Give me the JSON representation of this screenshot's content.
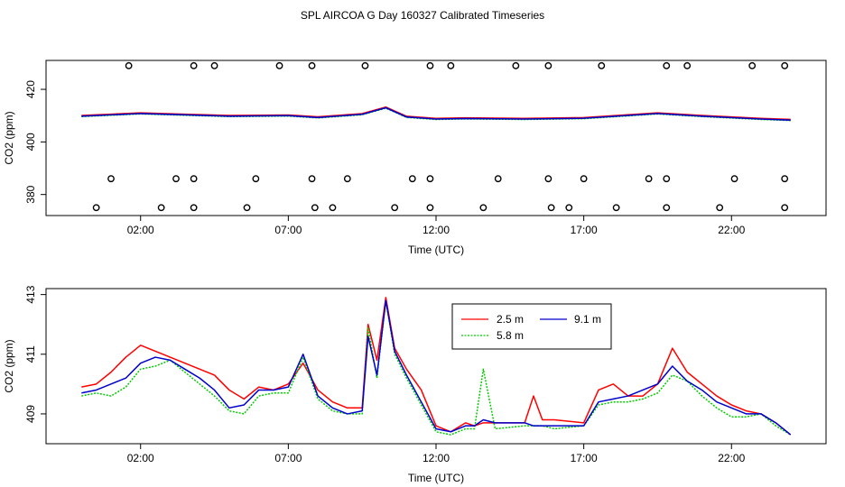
{
  "title": "SPL AIRCOA G  Day 160327  Calibrated Timeseries",
  "chart_data": [
    {
      "type": "line",
      "xlabel": "Time (UTC)",
      "ylabel": "CO2 (ppm)",
      "xlim": [
        -1.2,
        25.2
      ],
      "ylim": [
        372,
        431
      ],
      "xticks": [
        2,
        7,
        12,
        17,
        22
      ],
      "xtick_labels": [
        "02:00",
        "07:00",
        "12:00",
        "17:00",
        "22:00"
      ],
      "yticks": [
        380,
        400,
        420
      ],
      "ytick_labels": [
        "380",
        "400",
        "420"
      ],
      "colors": {
        "2.5 m": "#ff0000",
        "5.8 m": "#00cc00",
        "9.1 m": "#0000cc"
      },
      "series_level": [
        [
          0,
          409.8
        ],
        [
          2,
          410.8
        ],
        [
          3.5,
          410.3
        ],
        [
          5,
          409.8
        ],
        [
          7,
          410.0
        ],
        [
          8,
          409.3
        ],
        [
          9.5,
          410.5
        ],
        [
          10.3,
          413.0
        ],
        [
          11,
          409.5
        ],
        [
          12,
          408.7
        ],
        [
          13,
          408.9
        ],
        [
          15,
          408.7
        ],
        [
          17,
          409.0
        ],
        [
          19.5,
          410.8
        ],
        [
          21,
          409.8
        ],
        [
          23,
          408.7
        ],
        [
          24,
          408.3
        ]
      ],
      "markers": [
        {
          "y": 429,
          "x": [
            1.6,
            3.8,
            4.5,
            6.7,
            7.8,
            9.6,
            11.8,
            12.5,
            14.7,
            15.8,
            17.6,
            19.8,
            20.5,
            22.7,
            23.8
          ]
        },
        {
          "y": 386,
          "x": [
            1.0,
            3.2,
            3.8,
            5.9,
            7.8,
            9.0,
            11.2,
            11.8,
            14.1,
            15.8,
            17.0,
            19.2,
            19.8,
            22.1,
            23.8
          ]
        },
        {
          "y": 375,
          "x": [
            0.5,
            2.7,
            3.8,
            5.6,
            7.9,
            8.5,
            10.6,
            11.8,
            13.6,
            15.9,
            16.5,
            18.1,
            19.8,
            21.6,
            23.8
          ]
        }
      ]
    },
    {
      "type": "line",
      "xlabel": "Time (UTC)",
      "ylabel": "CO2 (ppm)",
      "xlim": [
        -1.2,
        25.2
      ],
      "ylim": [
        408.0,
        413.2
      ],
      "xticks": [
        2,
        7,
        12,
        17,
        22
      ],
      "xtick_labels": [
        "02:00",
        "07:00",
        "12:00",
        "17:00",
        "22:00"
      ],
      "yticks": [
        409,
        411,
        413
      ],
      "ytick_labels": [
        "409",
        "411",
        "413"
      ],
      "legend": {
        "position": "top-center"
      },
      "series": [
        {
          "name": "2.5 m",
          "color": "#ff0000",
          "x": [
            0,
            0.5,
            1,
            1.5,
            2,
            2.5,
            3,
            3.5,
            4,
            4.5,
            5,
            5.5,
            6,
            6.5,
            7,
            7.5,
            8,
            8.5,
            9,
            9.5,
            9.7,
            10,
            10.3,
            10.6,
            11,
            11.5,
            12,
            12.5,
            13,
            13.3,
            13.6,
            14,
            15,
            15.3,
            15.6,
            16,
            17,
            17.5,
            18,
            18.5,
            19,
            19.5,
            20,
            20.5,
            21,
            21.5,
            22,
            22.5,
            23,
            23.5,
            24
          ],
          "y": [
            409.9,
            410.0,
            410.4,
            410.9,
            411.3,
            411.1,
            410.9,
            410.7,
            410.5,
            410.3,
            409.8,
            409.5,
            409.9,
            409.8,
            410.0,
            410.7,
            409.8,
            409.4,
            409.2,
            409.2,
            412.0,
            410.8,
            412.9,
            411.2,
            410.5,
            409.8,
            408.6,
            408.4,
            408.7,
            408.6,
            408.7,
            408.7,
            408.7,
            409.6,
            408.8,
            408.8,
            408.7,
            409.8,
            410.0,
            409.6,
            409.6,
            410.0,
            411.2,
            410.4,
            410.0,
            409.6,
            409.3,
            409.1,
            409.0,
            408.7,
            408.3
          ]
        },
        {
          "name": "5.8 m",
          "color": "#00cc00",
          "x": [
            0,
            0.5,
            1,
            1.5,
            2,
            2.5,
            3,
            3.5,
            4,
            4.5,
            5,
            5.5,
            6,
            6.5,
            7,
            7.5,
            8,
            8.5,
            9,
            9.5,
            9.7,
            10,
            10.3,
            10.6,
            11,
            11.5,
            12,
            12.5,
            13,
            13.3,
            13.6,
            14,
            15,
            15.3,
            15.6,
            16,
            17,
            17.5,
            18,
            18.5,
            19,
            19.5,
            20,
            20.5,
            21,
            21.5,
            22,
            22.5,
            23,
            23.5,
            24
          ],
          "y": [
            409.6,
            409.7,
            409.6,
            409.9,
            410.5,
            410.6,
            410.8,
            410.4,
            410.0,
            409.6,
            409.1,
            409.0,
            409.6,
            409.7,
            409.7,
            410.9,
            409.5,
            409.1,
            409.0,
            409.0,
            411.9,
            410.2,
            412.8,
            411.0,
            410.2,
            409.3,
            408.4,
            408.3,
            408.5,
            408.5,
            410.5,
            408.5,
            408.6,
            408.6,
            408.6,
            408.5,
            408.6,
            409.3,
            409.4,
            409.4,
            409.5,
            409.7,
            410.3,
            410.1,
            409.6,
            409.2,
            408.9,
            408.9,
            409.0,
            408.6,
            408.3
          ]
        },
        {
          "name": "9.1 m",
          "color": "#0000cc",
          "x": [
            0,
            0.5,
            1,
            1.5,
            2,
            2.5,
            3,
            3.5,
            4,
            4.5,
            5,
            5.5,
            6,
            6.5,
            7,
            7.5,
            8,
            8.5,
            9,
            9.5,
            9.7,
            10,
            10.3,
            10.6,
            11,
            11.5,
            12,
            12.5,
            13,
            13.3,
            13.6,
            14,
            15,
            15.3,
            15.6,
            16,
            17,
            17.5,
            18,
            18.5,
            19,
            19.5,
            20,
            20.5,
            21,
            21.5,
            22,
            22.5,
            23,
            23.5,
            24
          ],
          "y": [
            409.7,
            409.8,
            410.0,
            410.2,
            410.7,
            410.9,
            410.8,
            410.5,
            410.2,
            409.8,
            409.2,
            409.3,
            409.8,
            409.8,
            409.9,
            411.0,
            409.6,
            409.2,
            409.0,
            409.1,
            411.6,
            410.3,
            412.8,
            411.1,
            410.3,
            409.4,
            408.5,
            408.4,
            408.6,
            408.6,
            408.8,
            408.7,
            408.7,
            408.6,
            408.6,
            408.6,
            408.6,
            409.4,
            409.5,
            409.6,
            409.8,
            410.0,
            410.6,
            410.1,
            409.8,
            409.4,
            409.2,
            409.0,
            409.0,
            408.7,
            408.3
          ]
        }
      ]
    }
  ]
}
